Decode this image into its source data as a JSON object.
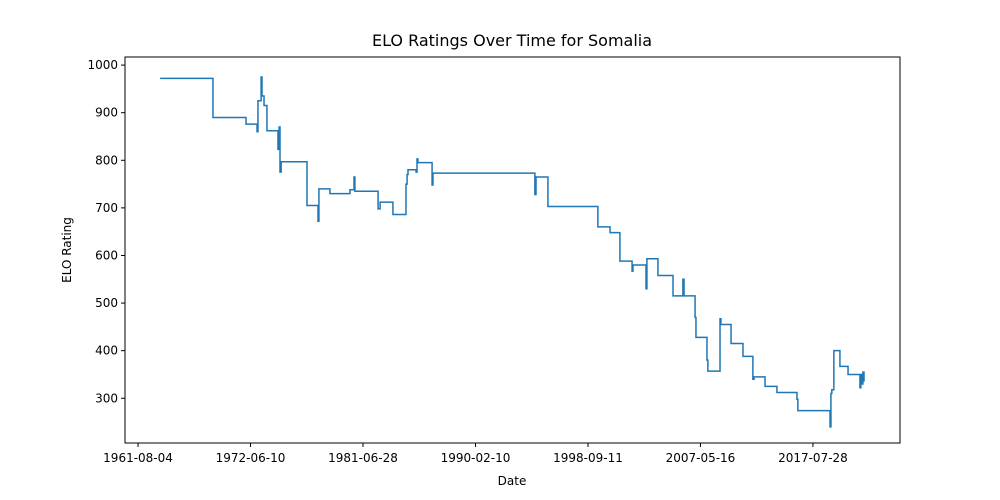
{
  "chart_data": {
    "type": "line",
    "drawstyle": "steps-post",
    "title": "ELO Ratings Over Time for Somalia",
    "xlabel": "Date",
    "ylabel": "ELO Rating",
    "xlim": [
      -5.8,
      338.7
    ],
    "ylim": [
      206,
      1017
    ],
    "xticks": [
      {
        "value": 0,
        "label": "1961-08-04"
      },
      {
        "value": 50,
        "label": "1972-06-10"
      },
      {
        "value": 100,
        "label": "1981-06-28"
      },
      {
        "value": 150,
        "label": "1990-02-10"
      },
      {
        "value": 200,
        "label": "1998-09-11"
      },
      {
        "value": 250,
        "label": "2007-05-16"
      },
      {
        "value": 300,
        "label": "2017-07-28"
      }
    ],
    "yticks": [
      300,
      400,
      500,
      600,
      700,
      800,
      900,
      1000
    ],
    "series": [
      {
        "color": "#1f77b4",
        "x": [
          9.8,
          33.3,
          48,
          52.9,
          53.3,
          54.7,
          55.1,
          56,
          57.3,
          62.2,
          62.7,
          63.1,
          63.6,
          75.1,
          80,
          80.4,
          85.3,
          94.2,
          96,
          96.4,
          106.7,
          107.6,
          113.3,
          119.1,
          119.6,
          120,
          123.6,
          124,
          124.4,
          130.7,
          131.1,
          176.4,
          176.9,
          182.2,
          204.4,
          209.8,
          214.2,
          219.6,
          220,
          225.8,
          226.2,
          231.1,
          237.8,
          242.2,
          242.7,
          247.6,
          248,
          252.9,
          253.3,
          258.7,
          259.1,
          263.6,
          268.9,
          273.3,
          273.8,
          278.7,
          284,
          292.9,
          293.3,
          307.6,
          308,
          308.4,
          309.3,
          312,
          315.6,
          320.9,
          321.3,
          321.8,
          322.2,
          322.7
        ],
        "values": [
          972,
          890,
          876,
          860,
          925,
          975,
          935,
          915,
          862,
          823,
          870,
          775,
          797,
          705,
          672,
          740,
          730,
          738,
          765,
          735,
          698,
          712,
          686,
          750,
          770,
          780,
          775,
          803,
          795,
          748,
          773,
          728,
          765,
          703,
          660,
          648,
          588,
          567,
          580,
          530,
          593,
          558,
          515,
          550,
          515,
          470,
          428,
          380,
          357,
          467,
          455,
          415,
          388,
          340,
          345,
          325,
          312,
          298,
          274,
          240,
          310,
          318,
          400,
          367,
          350,
          322,
          350,
          330,
          355,
          335
        ]
      }
    ]
  }
}
